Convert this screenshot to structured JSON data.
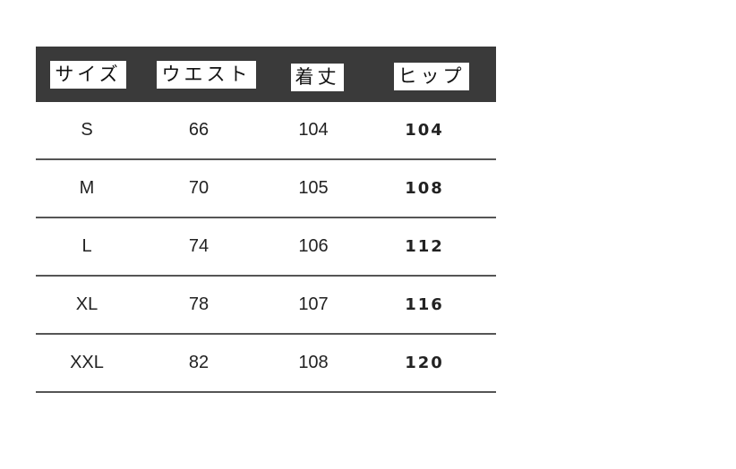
{
  "headers": [
    "サイズ",
    "ウエスト",
    "着丈",
    "ヒップ"
  ],
  "rows": [
    [
      "S",
      "66",
      "104",
      "104"
    ],
    [
      "M",
      "70",
      "105",
      "108"
    ],
    [
      "L",
      "74",
      "106",
      "112"
    ],
    [
      "XL",
      "78",
      "107",
      "116"
    ],
    [
      "XXL",
      "82",
      "108",
      "120"
    ]
  ]
}
